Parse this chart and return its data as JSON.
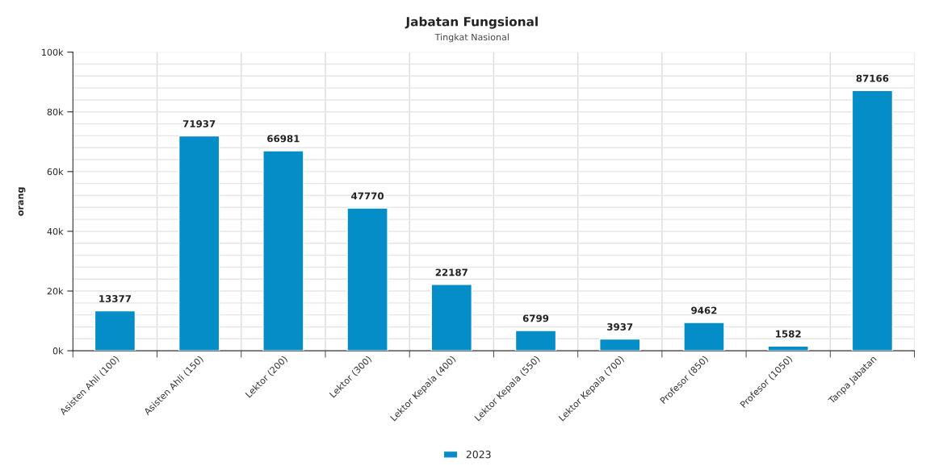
{
  "chart_data": {
    "type": "bar",
    "title": "Jabatan Fungsional",
    "subtitle": "Tingkat Nasional",
    "ylabel": "orang",
    "categories": [
      "Asisten Ahli (100)",
      "Asisten Ahli (150)",
      "Lektor (200)",
      "Lektor (300)",
      "Lektor Kepala (400)",
      "Lektor Kepala (550)",
      "Lektor Kepala (700)",
      "Profesor (850)",
      "Profesor (1050)",
      "Tanpa Jabatan"
    ],
    "series": [
      {
        "name": "2023",
        "color": "#058dc7",
        "values": [
          13377,
          71937,
          66981,
          47770,
          22187,
          6799,
          3937,
          9462,
          1582,
          87166
        ]
      }
    ],
    "ylim": [
      0,
      100000
    ],
    "yticks": [
      {
        "value": 0,
        "label": "0k"
      },
      {
        "value": 20000,
        "label": "20k"
      },
      {
        "value": 40000,
        "label": "40k"
      },
      {
        "value": 60000,
        "label": "60k"
      },
      {
        "value": 80000,
        "label": "80k"
      },
      {
        "value": 100000,
        "label": "100k"
      }
    ],
    "data_labels": true,
    "grid": true,
    "legend": "bottom"
  }
}
